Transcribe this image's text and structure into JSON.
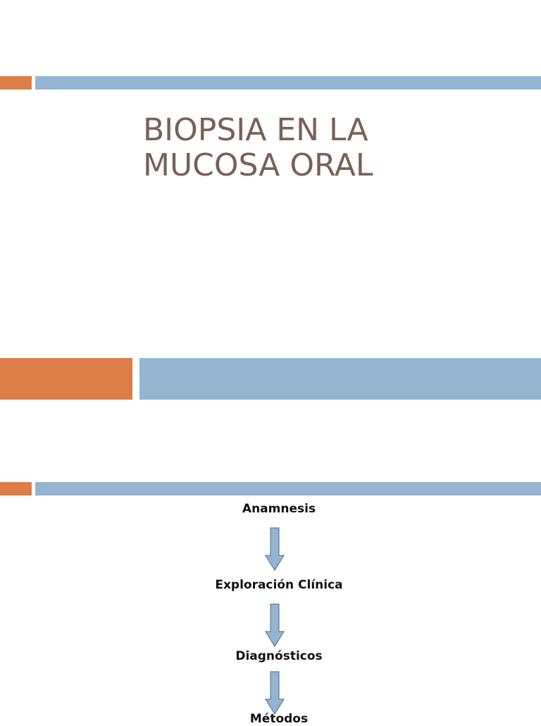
{
  "slide1": {
    "title_line1": "BIOPSIA EN LA",
    "title_line2": "MUCOSA ORAL"
  },
  "slide3": {
    "steps": [
      "Anamnesis",
      "Exploración Clínica",
      "Diagnósticos",
      "Métodos"
    ]
  },
  "colors": {
    "orange_accent": "#dd7e46",
    "blue_accent": "#95b4d2",
    "title_text": "#7a6055"
  },
  "icons": [
    "down-arrow-icon"
  ]
}
